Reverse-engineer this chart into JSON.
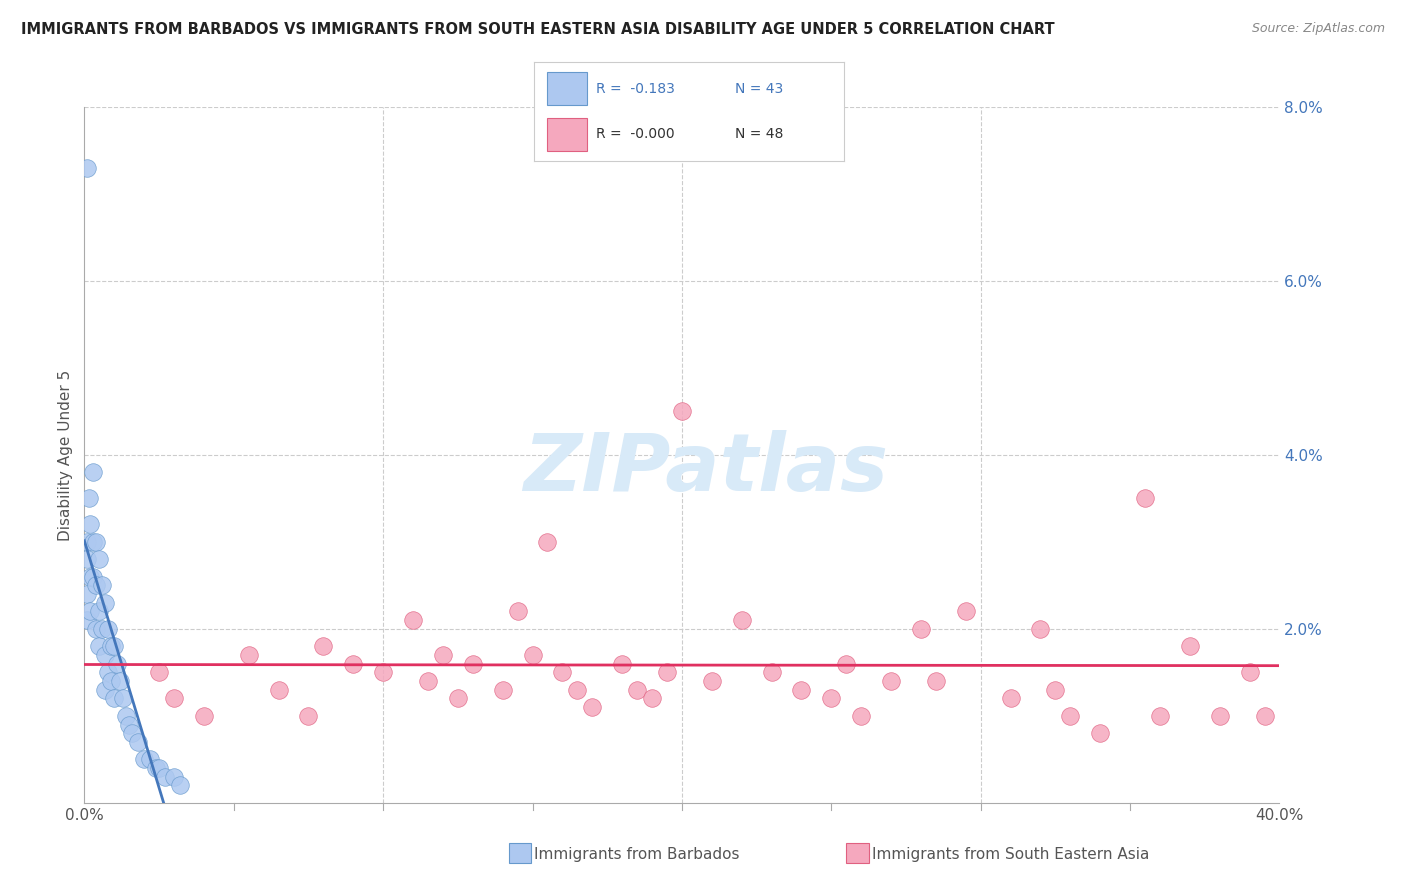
{
  "title": "IMMIGRANTS FROM BARBADOS VS IMMIGRANTS FROM SOUTH EASTERN ASIA DISABILITY AGE UNDER 5 CORRELATION CHART",
  "source": "Source: ZipAtlas.com",
  "xlabel_blue": "Immigrants from Barbados",
  "xlabel_pink": "Immigrants from South Eastern Asia",
  "ylabel": "Disability Age Under 5",
  "xlim": [
    0.0,
    0.4
  ],
  "ylim": [
    0.0,
    0.08
  ],
  "xticks": [
    0.0,
    0.4
  ],
  "xtick_labels": [
    "0.0%",
    "40.0%"
  ],
  "yticks": [
    0.0,
    0.02,
    0.04,
    0.06,
    0.08
  ],
  "ytick_labels": [
    "",
    "2.0%",
    "4.0%",
    "6.0%",
    "8.0%"
  ],
  "grid_xticks": [
    0.1,
    0.2,
    0.3
  ],
  "R_blue": -0.183,
  "N_blue": 43,
  "R_pink": -0.0,
  "N_pink": 48,
  "blue_color": "#adc8f0",
  "pink_color": "#f5a8be",
  "blue_edge_color": "#6699cc",
  "pink_edge_color": "#e06080",
  "blue_line_color": "#4477bb",
  "pink_line_color": "#e03060",
  "watermark_color": "#d8eaf8",
  "blue_scatter_x": [
    0.0008,
    0.001,
    0.001,
    0.001,
    0.001,
    0.0015,
    0.002,
    0.002,
    0.002,
    0.003,
    0.003,
    0.003,
    0.004,
    0.004,
    0.004,
    0.005,
    0.005,
    0.005,
    0.006,
    0.006,
    0.007,
    0.007,
    0.007,
    0.008,
    0.008,
    0.009,
    0.009,
    0.01,
    0.01,
    0.011,
    0.012,
    0.013,
    0.014,
    0.015,
    0.016,
    0.018,
    0.02,
    0.022,
    0.024,
    0.025,
    0.027,
    0.03,
    0.032
  ],
  "blue_scatter_y": [
    0.073,
    0.03,
    0.028,
    0.024,
    0.021,
    0.035,
    0.032,
    0.026,
    0.022,
    0.038,
    0.03,
    0.026,
    0.03,
    0.025,
    0.02,
    0.028,
    0.022,
    0.018,
    0.025,
    0.02,
    0.023,
    0.017,
    0.013,
    0.02,
    0.015,
    0.018,
    0.014,
    0.018,
    0.012,
    0.016,
    0.014,
    0.012,
    0.01,
    0.009,
    0.008,
    0.007,
    0.005,
    0.005,
    0.004,
    0.004,
    0.003,
    0.003,
    0.002
  ],
  "pink_scatter_x": [
    0.025,
    0.03,
    0.04,
    0.055,
    0.065,
    0.075,
    0.08,
    0.09,
    0.1,
    0.11,
    0.115,
    0.12,
    0.125,
    0.13,
    0.14,
    0.145,
    0.15,
    0.155,
    0.16,
    0.165,
    0.17,
    0.18,
    0.185,
    0.19,
    0.195,
    0.2,
    0.21,
    0.22,
    0.23,
    0.24,
    0.25,
    0.255,
    0.26,
    0.27,
    0.28,
    0.285,
    0.295,
    0.31,
    0.32,
    0.325,
    0.33,
    0.34,
    0.355,
    0.36,
    0.37,
    0.38,
    0.39,
    0.395
  ],
  "pink_scatter_y": [
    0.015,
    0.012,
    0.01,
    0.017,
    0.013,
    0.01,
    0.018,
    0.016,
    0.015,
    0.021,
    0.014,
    0.017,
    0.012,
    0.016,
    0.013,
    0.022,
    0.017,
    0.03,
    0.015,
    0.013,
    0.011,
    0.016,
    0.013,
    0.012,
    0.015,
    0.045,
    0.014,
    0.021,
    0.015,
    0.013,
    0.012,
    0.016,
    0.01,
    0.014,
    0.02,
    0.014,
    0.022,
    0.012,
    0.02,
    0.013,
    0.01,
    0.008,
    0.035,
    0.01,
    0.018,
    0.01,
    0.015,
    0.01
  ]
}
